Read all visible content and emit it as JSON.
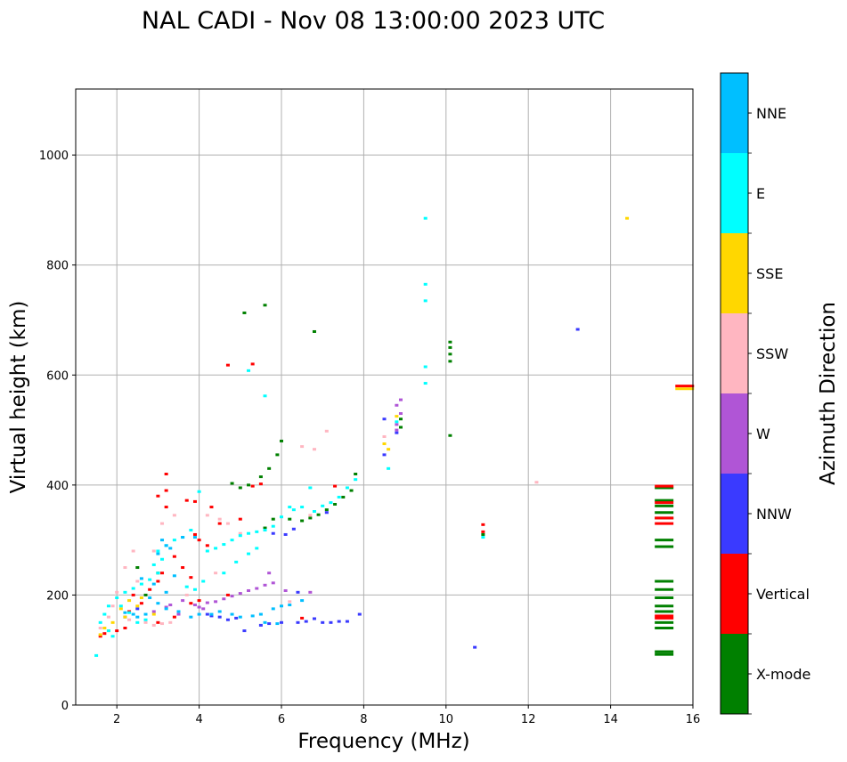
{
  "chart_data": {
    "type": "scatter",
    "title": "NAL CADI - Nov 08 13:00:00 2023 UTC",
    "xlabel": "Frequency (MHz)",
    "ylabel": "Virtual height (km)",
    "xlim": [
      1,
      16
    ],
    "ylim": [
      0,
      1120
    ],
    "xticks": [
      2,
      4,
      6,
      8,
      10,
      12,
      14,
      16
    ],
    "yticks": [
      0,
      200,
      400,
      600,
      800,
      1000
    ],
    "grid": true,
    "colorbar": {
      "label": "Azimuth Direction",
      "categories": [
        "X-mode",
        "Vertical",
        "NNW",
        "W",
        "SSW",
        "SSE",
        "E",
        "NNE"
      ],
      "colors": [
        "#008000",
        "#ff0000",
        "#3a3aff",
        "#b055d6",
        "#ffb6c1",
        "#ffd700",
        "#00ffff",
        "#00bfff"
      ]
    },
    "series": [
      {
        "name": "X-mode",
        "points": [
          [
            5.1,
            713
          ],
          [
            5.6,
            727
          ],
          [
            6.8,
            679
          ],
          [
            6.0,
            480
          ],
          [
            5.9,
            455
          ],
          [
            5.7,
            430
          ],
          [
            5.5,
            415
          ],
          [
            5.2,
            400
          ],
          [
            5.0,
            395
          ],
          [
            4.8,
            403
          ],
          [
            6.2,
            338
          ],
          [
            6.5,
            335
          ],
          [
            6.7,
            340
          ],
          [
            6.9,
            346
          ],
          [
            7.1,
            355
          ],
          [
            7.3,
            365
          ],
          [
            7.5,
            378
          ],
          [
            7.7,
            390
          ],
          [
            7.8,
            420
          ],
          [
            10.1,
            660
          ],
          [
            10.1,
            650
          ],
          [
            10.1,
            638
          ],
          [
            10.1,
            625
          ],
          [
            10.1,
            490
          ],
          [
            10.9,
            310
          ],
          [
            8.9,
            520
          ],
          [
            8.9,
            505
          ],
          [
            5.8,
            338
          ],
          [
            5.6,
            322
          ],
          [
            15.3,
            395
          ],
          [
            15.3,
            372
          ],
          [
            15.3,
            362
          ],
          [
            15.3,
            350
          ],
          [
            15.3,
            340
          ],
          [
            15.3,
            300
          ],
          [
            15.3,
            288
          ],
          [
            15.3,
            225
          ],
          [
            15.3,
            210
          ],
          [
            15.3,
            195
          ],
          [
            15.3,
            180
          ],
          [
            15.3,
            170
          ],
          [
            15.3,
            150
          ],
          [
            15.3,
            140
          ],
          [
            15.3,
            97
          ],
          [
            15.3,
            92
          ],
          [
            2.5,
            250
          ],
          [
            3.0,
            240
          ],
          [
            2.7,
            200
          ]
        ]
      },
      {
        "name": "Vertical",
        "points": [
          [
            4.7,
            618
          ],
          [
            5.3,
            620
          ],
          [
            5.5,
            402
          ],
          [
            5.3,
            398
          ],
          [
            5.0,
            338
          ],
          [
            4.5,
            330
          ],
          [
            4.3,
            360
          ],
          [
            3.9,
            370
          ],
          [
            3.7,
            372
          ],
          [
            3.2,
            420
          ],
          [
            3.2,
            390
          ],
          [
            3.0,
            380
          ],
          [
            3.2,
            360
          ],
          [
            3.9,
            310
          ],
          [
            4.0,
            300
          ],
          [
            4.2,
            290
          ],
          [
            3.4,
            270
          ],
          [
            3.6,
            250
          ],
          [
            3.1,
            240
          ],
          [
            3.0,
            225
          ],
          [
            2.8,
            210
          ],
          [
            2.4,
            200
          ],
          [
            2.6,
            185
          ],
          [
            2.3,
            170
          ],
          [
            3.4,
            160
          ],
          [
            3.0,
            150
          ],
          [
            3.8,
            185
          ],
          [
            4.0,
            190
          ],
          [
            2.2,
            140
          ],
          [
            2.0,
            135
          ],
          [
            1.7,
            130
          ],
          [
            1.6,
            125
          ],
          [
            7.3,
            398
          ],
          [
            10.9,
            328
          ],
          [
            10.9,
            315
          ],
          [
            15.3,
            398
          ],
          [
            15.3,
            368
          ],
          [
            15.3,
            340
          ],
          [
            15.3,
            330
          ],
          [
            15.3,
            162
          ],
          [
            15.3,
            158
          ],
          [
            15.8,
            580
          ],
          [
            6.5,
            158
          ],
          [
            3.8,
            232
          ],
          [
            4.7,
            200
          ]
        ]
      },
      {
        "name": "NNW",
        "points": [
          [
            8.5,
            520
          ],
          [
            8.5,
            455
          ],
          [
            8.8,
            495
          ],
          [
            5.1,
            135
          ],
          [
            5.5,
            145
          ],
          [
            5.7,
            148
          ],
          [
            6.0,
            150
          ],
          [
            6.4,
            150
          ],
          [
            6.6,
            152
          ],
          [
            6.8,
            157
          ],
          [
            7.0,
            150
          ],
          [
            7.2,
            150
          ],
          [
            7.4,
            152
          ],
          [
            7.6,
            152
          ],
          [
            7.9,
            165
          ],
          [
            4.9,
            158
          ],
          [
            4.5,
            160
          ],
          [
            4.3,
            162
          ],
          [
            4.2,
            165
          ],
          [
            4.7,
            155
          ],
          [
            10.7,
            105
          ],
          [
            13.2,
            683
          ],
          [
            6.3,
            320
          ],
          [
            6.1,
            310
          ],
          [
            5.8,
            312
          ],
          [
            2.2,
            160
          ],
          [
            2.5,
            175
          ],
          [
            6.4,
            205
          ],
          [
            7.1,
            350
          ]
        ]
      },
      {
        "name": "W",
        "points": [
          [
            8.9,
            555
          ],
          [
            8.8,
            545
          ],
          [
            8.9,
            530
          ],
          [
            8.8,
            500
          ],
          [
            8.8,
            510
          ],
          [
            5.8,
            222
          ],
          [
            5.6,
            218
          ],
          [
            5.4,
            212
          ],
          [
            5.2,
            208
          ],
          [
            5.0,
            203
          ],
          [
            4.8,
            198
          ],
          [
            4.6,
            193
          ],
          [
            4.4,
            188
          ],
          [
            4.2,
            186
          ],
          [
            4.0,
            178
          ],
          [
            5.7,
            240
          ],
          [
            6.1,
            208
          ],
          [
            6.7,
            205
          ],
          [
            3.6,
            190
          ],
          [
            3.3,
            182
          ],
          [
            3.2,
            178
          ],
          [
            2.9,
            170
          ],
          [
            3.5,
            165
          ],
          [
            4.1,
            175
          ],
          [
            3.9,
            182
          ]
        ]
      },
      {
        "name": "SSW",
        "points": [
          [
            12.2,
            405
          ],
          [
            6.5,
            470
          ],
          [
            6.8,
            465
          ],
          [
            7.1,
            498
          ],
          [
            8.5,
            488
          ],
          [
            4.5,
            338
          ],
          [
            4.2,
            345
          ],
          [
            3.4,
            345
          ],
          [
            3.1,
            330
          ],
          [
            2.9,
            280
          ],
          [
            2.4,
            280
          ],
          [
            2.2,
            250
          ],
          [
            2.5,
            225
          ],
          [
            2.0,
            205
          ],
          [
            1.9,
            180
          ],
          [
            1.8,
            160
          ],
          [
            2.7,
            150
          ],
          [
            2.9,
            145
          ],
          [
            3.1,
            148
          ],
          [
            3.3,
            150
          ],
          [
            6.2,
            188
          ],
          [
            5.0,
            312
          ],
          [
            6.7,
            345
          ],
          [
            1.6,
            140
          ],
          [
            4.7,
            330
          ],
          [
            4.4,
            240
          ],
          [
            3.7,
            200
          ],
          [
            2.3,
            155
          ]
        ]
      },
      {
        "name": "SSE",
        "points": [
          [
            14.4,
            885
          ],
          [
            15.8,
            575
          ],
          [
            8.8,
            525
          ],
          [
            8.5,
            475
          ],
          [
            8.6,
            465
          ],
          [
            2.3,
            190
          ],
          [
            2.5,
            180
          ],
          [
            2.1,
            175
          ],
          [
            2.2,
            160
          ],
          [
            1.9,
            150
          ],
          [
            1.7,
            140
          ],
          [
            1.8,
            135
          ],
          [
            1.6,
            128
          ],
          [
            2.6,
            195
          ],
          [
            2.9,
            165
          ]
        ]
      },
      {
        "name": "E",
        "points": [
          [
            9.5,
            885
          ],
          [
            9.5,
            765
          ],
          [
            9.5,
            735
          ],
          [
            9.5,
            615
          ],
          [
            9.5,
            585
          ],
          [
            5.2,
            608
          ],
          [
            5.6,
            562
          ],
          [
            8.6,
            430
          ],
          [
            7.8,
            410
          ],
          [
            7.6,
            395
          ],
          [
            7.4,
            378
          ],
          [
            7.2,
            368
          ],
          [
            7.0,
            362
          ],
          [
            6.8,
            352
          ],
          [
            6.5,
            360
          ],
          [
            6.3,
            355
          ],
          [
            6.0,
            342
          ],
          [
            5.8,
            325
          ],
          [
            5.6,
            318
          ],
          [
            5.4,
            315
          ],
          [
            5.2,
            312
          ],
          [
            5.0,
            308
          ],
          [
            4.8,
            300
          ],
          [
            4.6,
            292
          ],
          [
            4.4,
            285
          ],
          [
            4.2,
            280
          ],
          [
            4.0,
            388
          ],
          [
            3.8,
            318
          ],
          [
            3.6,
            305
          ],
          [
            3.4,
            300
          ],
          [
            3.2,
            290
          ],
          [
            3.0,
            280
          ],
          [
            3.1,
            265
          ],
          [
            2.9,
            255
          ],
          [
            3.0,
            240
          ],
          [
            2.8,
            228
          ],
          [
            2.6,
            220
          ],
          [
            2.4,
            212
          ],
          [
            2.2,
            205
          ],
          [
            2.0,
            195
          ],
          [
            1.8,
            180
          ],
          [
            1.7,
            165
          ],
          [
            1.6,
            150
          ],
          [
            1.8,
            135
          ],
          [
            1.9,
            125
          ],
          [
            2.1,
            180
          ],
          [
            2.3,
            168
          ],
          [
            2.5,
            150
          ],
          [
            2.7,
            155
          ],
          [
            10.9,
            305
          ],
          [
            1.5,
            90
          ],
          [
            6.2,
            360
          ],
          [
            6.7,
            395
          ],
          [
            4.6,
            240
          ],
          [
            4.9,
            260
          ],
          [
            5.2,
            275
          ],
          [
            5.4,
            285
          ],
          [
            4.1,
            225
          ],
          [
            3.9,
            210
          ],
          [
            3.7,
            215
          ],
          [
            8.8,
            515
          ]
        ]
      },
      {
        "name": "NNE",
        "points": [
          [
            3.1,
            300
          ],
          [
            3.2,
            290
          ],
          [
            3.0,
            275
          ],
          [
            3.3,
            285
          ],
          [
            3.6,
            305
          ],
          [
            3.9,
            305
          ],
          [
            2.9,
            220
          ],
          [
            3.2,
            205
          ],
          [
            2.8,
            195
          ],
          [
            3.0,
            185
          ],
          [
            3.2,
            175
          ],
          [
            2.7,
            165
          ],
          [
            2.5,
            160
          ],
          [
            2.4,
            165
          ],
          [
            2.2,
            168
          ],
          [
            3.5,
            170
          ],
          [
            3.8,
            160
          ],
          [
            4.0,
            165
          ],
          [
            4.3,
            165
          ],
          [
            4.5,
            170
          ],
          [
            4.8,
            165
          ],
          [
            5.0,
            160
          ],
          [
            5.3,
            162
          ],
          [
            5.5,
            165
          ],
          [
            5.8,
            175
          ],
          [
            6.0,
            180
          ],
          [
            6.2,
            182
          ],
          [
            6.5,
            190
          ],
          [
            5.6,
            150
          ],
          [
            5.9,
            148
          ],
          [
            3.4,
            235
          ],
          [
            2.6,
            230
          ]
        ]
      }
    ]
  }
}
